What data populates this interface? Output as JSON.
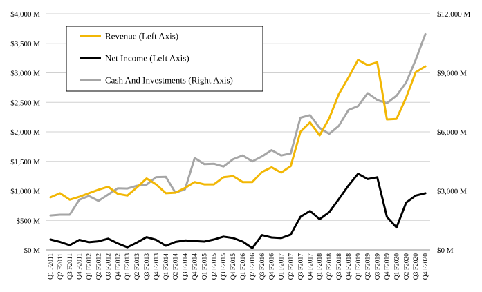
{
  "chart_data": {
    "type": "line",
    "grid": true,
    "legend_position": "top-left",
    "left_axis": {
      "range": [
        0,
        4000
      ],
      "ticks": [
        0,
        500,
        1000,
        1500,
        2000,
        2500,
        3000,
        3500,
        4000
      ],
      "tick_labels": [
        "$0 M",
        "$500 M",
        "$1,000 M",
        "$1,500 M",
        "$2,000 M",
        "$2,500 M",
        "$3,000 M",
        "$3,500 M",
        "$4,000 M"
      ]
    },
    "right_axis": {
      "range": [
        0,
        12000
      ],
      "ticks": [
        0,
        3000,
        6000,
        9000,
        12000
      ],
      "tick_labels": [
        "$0 M",
        "$3,000 M",
        "$6,000 M",
        "$9,000 M",
        "$12,000 M"
      ]
    },
    "categories": [
      "Q1 F2011",
      "Q2 F2011",
      "Q3 F2011",
      "Q4 F2011",
      "Q1 F2012",
      "Q2 F2012",
      "Q3 F2012",
      "Q4 F2012",
      "Q1 F2013",
      "Q2 F2013",
      "Q3 F2013",
      "Q4 F2013",
      "Q1 F2014",
      "Q2 F2014",
      "Q3 F2014",
      "Q4 F2014",
      "Q1 F2015",
      "Q2 F2015",
      "Q3 F2015",
      "Q4 F2015",
      "Q1 F2016",
      "Q2 F2016",
      "Q3 F2016",
      "Q4 F2016",
      "Q1 F2017",
      "Q2 F2017",
      "Q3 F2017",
      "Q4 F2017",
      "Q1 F2018",
      "Q2 F2018",
      "Q3 F2018",
      "Q4 F2018",
      "Q1 F2019",
      "Q2 F2019",
      "Q3 F2019",
      "Q4 F2019",
      "Q1 F2020",
      "Q2 F2020",
      "Q3 F2020",
      "Q4 F2020"
    ],
    "series": [
      {
        "name": "Revenue (Left Axis)",
        "axis": "left",
        "color": "#F2B705",
        "values": [
          890,
          960,
          850,
          900,
          960,
          1020,
          1070,
          950,
          920,
          1060,
          1210,
          1110,
          960,
          970,
          1050,
          1150,
          1110,
          1110,
          1230,
          1250,
          1150,
          1150,
          1320,
          1400,
          1310,
          1420,
          2000,
          2160,
          1940,
          2230,
          2640,
          2920,
          3220,
          3130,
          3180,
          2210,
          2220,
          2580,
          3010,
          3110
        ]
      },
      {
        "name": "Net Income (Left Axis)",
        "axis": "left",
        "color": "#000000",
        "values": [
          175,
          135,
          80,
          170,
          130,
          145,
          190,
          110,
          45,
          125,
          215,
          170,
          70,
          135,
          160,
          150,
          140,
          175,
          225,
          200,
          140,
          30,
          250,
          210,
          200,
          260,
          560,
          660,
          520,
          640,
          860,
          1090,
          1290,
          1200,
          1230,
          560,
          380,
          800,
          920,
          960
        ]
      },
      {
        "name": "Cash And Investments (Right Axis)",
        "axis": "right",
        "color": "#A6A6A6",
        "values": [
          1750,
          1790,
          1790,
          2550,
          2740,
          2490,
          2810,
          3130,
          3120,
          3260,
          3320,
          3700,
          3710,
          2910,
          3080,
          4670,
          4360,
          4380,
          4240,
          4610,
          4800,
          4500,
          4750,
          5070,
          4800,
          4900,
          6720,
          6850,
          6200,
          5900,
          6300,
          7110,
          7310,
          7970,
          7620,
          7460,
          7840,
          8510,
          9660,
          10970
        ]
      }
    ]
  }
}
